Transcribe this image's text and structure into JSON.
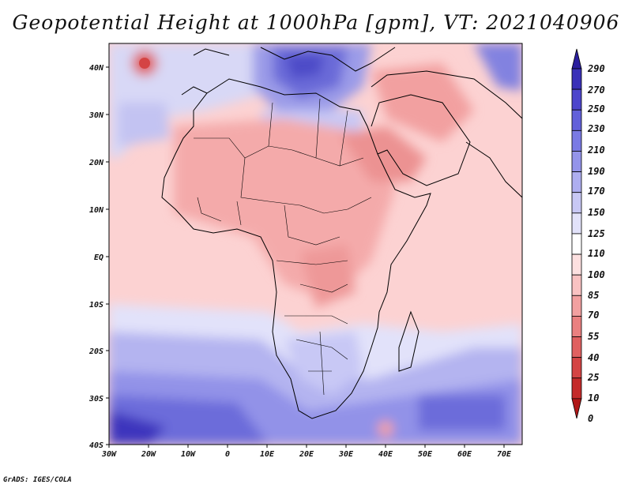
{
  "title": "Geopotential Height at 1000hPa [gpm], VT: 2021040906",
  "credit": "GrADS: IGES/COLA",
  "map": {
    "lat_labels": [
      "40N",
      "30N",
      "20N",
      "10N",
      "EQ",
      "10S",
      "20S",
      "30S",
      "40S"
    ],
    "lon_labels": [
      "30W",
      "20W",
      "10W",
      "0",
      "10E",
      "20E",
      "30E",
      "40E",
      "50E",
      "60E",
      "70E"
    ]
  },
  "colorbar": {
    "labels": [
      "290",
      "270",
      "250",
      "230",
      "210",
      "190",
      "170",
      "150",
      "125",
      "110",
      "100",
      "85",
      "70",
      "55",
      "40",
      "25",
      "10",
      "0"
    ],
    "colors": [
      "#2b1e9e",
      "#3a30b8",
      "#4d45cc",
      "#6260da",
      "#7a7ae4",
      "#9494ea",
      "#aeaef0",
      "#c8c8f5",
      "#e2e2fa",
      "#ffffff",
      "#fde0e0",
      "#f9c2c2",
      "#f2a0a0",
      "#ea8080",
      "#e06060",
      "#d44444",
      "#c42a2a",
      "#b01818"
    ]
  }
}
